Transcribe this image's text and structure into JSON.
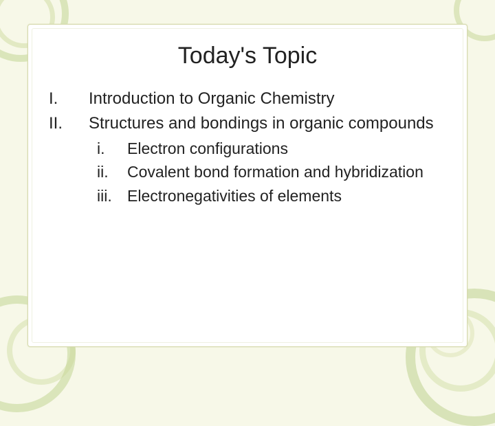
{
  "slide": {
    "title": "Today's Topic",
    "title_fontsize": 34,
    "body_fontsize": 24,
    "sub_fontsize": 23,
    "text_color": "#222222",
    "background_color": "#f7f8e8",
    "panel_color": "#ffffff",
    "panel_border_color": "#d8dbb0",
    "accent_swirl_color": "#c5d596",
    "items": [
      {
        "num": "I.",
        "text": "Introduction to Organic Chemistry"
      },
      {
        "num": "II.",
        "text": "Structures and bondings in organic compounds"
      }
    ],
    "subitems": [
      {
        "num": "i.",
        "text": "Electron configurations"
      },
      {
        "num": "ii.",
        "text": "Covalent bond formation and hybridization"
      },
      {
        "num": "iii.",
        "text": "Electronegativities of elements"
      }
    ]
  }
}
